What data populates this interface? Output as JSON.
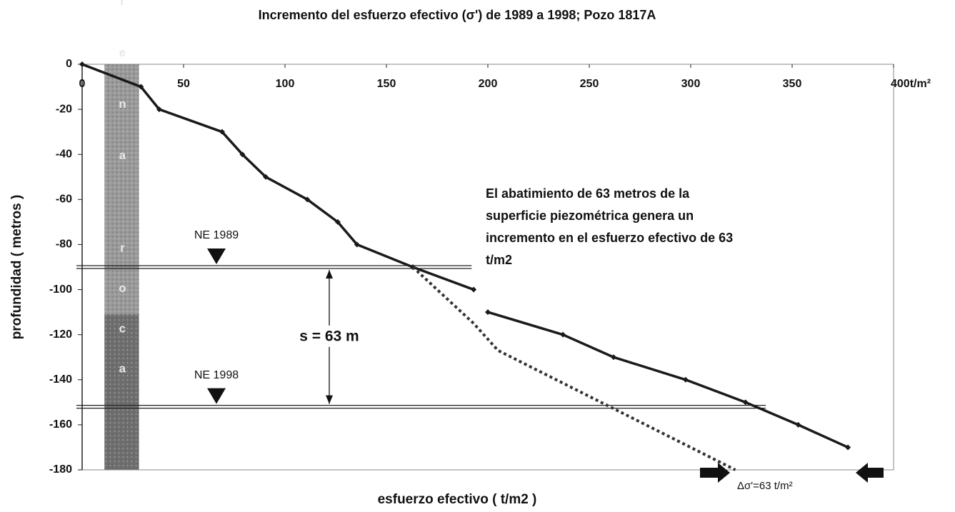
{
  "chart_data": {
    "type": "line",
    "title": "Incremento del esfuerzo efectivo (σ') de 1989 a 1998; Pozo 1817A",
    "xlabel": "esfuerzo efectivo ( t/m2 )",
    "ylabel": "profundidad ( metros )",
    "xlim": [
      0,
      400
    ],
    "ylim": [
      -180,
      0
    ],
    "xticks": [
      0,
      50,
      100,
      150,
      200,
      250,
      300,
      350,
      {
        "value": 400,
        "label": "400t/m²"
      }
    ],
    "yticks": [
      0,
      -20,
      -40,
      -60,
      -80,
      -100,
      -120,
      -140,
      -160,
      -180
    ],
    "series": [
      {
        "color": "#1a1a1a",
        "style": "solid",
        "x": [
          0,
          29,
          38,
          69,
          79,
          90.5,
          111,
          126,
          135.5,
          163,
          193,
          null,
          200,
          237,
          262,
          297.5,
          327,
          353,
          377.5
        ],
        "values": [
          0,
          -10,
          -20,
          -30,
          -40,
          -50,
          -60,
          -70,
          -80,
          -90,
          -100,
          null,
          -110,
          -120,
          -130,
          -140,
          -150,
          -160,
          -170
        ]
      },
      {
        "color": "#333333",
        "style": "dotted",
        "x": [
          163,
          193,
          205,
          322
        ],
        "values": [
          -90,
          -115,
          -127,
          -180
        ]
      }
    ],
    "levels": [
      {
        "label": "NE 1989",
        "value": -90,
        "xend": 192
      },
      {
        "label": "NE 1998",
        "value": -152,
        "xend": 337
      }
    ],
    "drawdown_label": "s = 63 m",
    "strata": [
      {
        "label": "arena",
        "top": 0,
        "bottom": -111,
        "color": "#9a9a9a"
      },
      {
        "label": "roca",
        "top": -111,
        "bottom": -180,
        "color": "#6e6e6e"
      }
    ],
    "strata_x": [
      11,
      28
    ],
    "annotation": [
      "El abatimiento de 63  metros  de la",
      "superficie piezométrica  genera  un",
      "incremento en el esfuerzo efectivo de 63",
      "t/m2"
    ],
    "delta_label": "Δσ'=63 t/m²"
  }
}
